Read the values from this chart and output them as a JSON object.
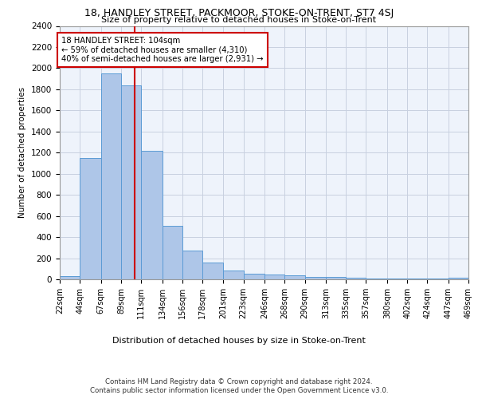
{
  "title": "18, HANDLEY STREET, PACKMOOR, STOKE-ON-TRENT, ST7 4SJ",
  "subtitle": "Size of property relative to detached houses in Stoke-on-Trent",
  "xlabel": "Distribution of detached houses by size in Stoke-on-Trent",
  "ylabel": "Number of detached properties",
  "footer_line1": "Contains HM Land Registry data © Crown copyright and database right 2024.",
  "footer_line2": "Contains public sector information licensed under the Open Government Licence v3.0.",
  "annotation_title": "18 HANDLEY STREET: 104sqm",
  "annotation_line1": "← 59% of detached houses are smaller (4,310)",
  "annotation_line2": "40% of semi-detached houses are larger (2,931) →",
  "property_sqm": 104,
  "bin_edges": [
    22,
    44,
    67,
    89,
    111,
    134,
    156,
    178,
    201,
    223,
    246,
    268,
    290,
    313,
    335,
    357,
    380,
    402,
    424,
    447,
    469
  ],
  "bar_heights": [
    30,
    1150,
    1950,
    1840,
    1220,
    510,
    270,
    155,
    80,
    50,
    45,
    40,
    20,
    25,
    15,
    5,
    5,
    5,
    5,
    15
  ],
  "bar_color": "#aec6e8",
  "bar_edge_color": "#5b9bd5",
  "vline_color": "#cc0000",
  "grid_color": "#c8d0e0",
  "bg_color": "#eef3fb",
  "annotation_box_color": "#cc0000",
  "ylim": [
    0,
    2400
  ],
  "yticks": [
    0,
    200,
    400,
    600,
    800,
    1000,
    1200,
    1400,
    1600,
    1800,
    2000,
    2200,
    2400
  ]
}
